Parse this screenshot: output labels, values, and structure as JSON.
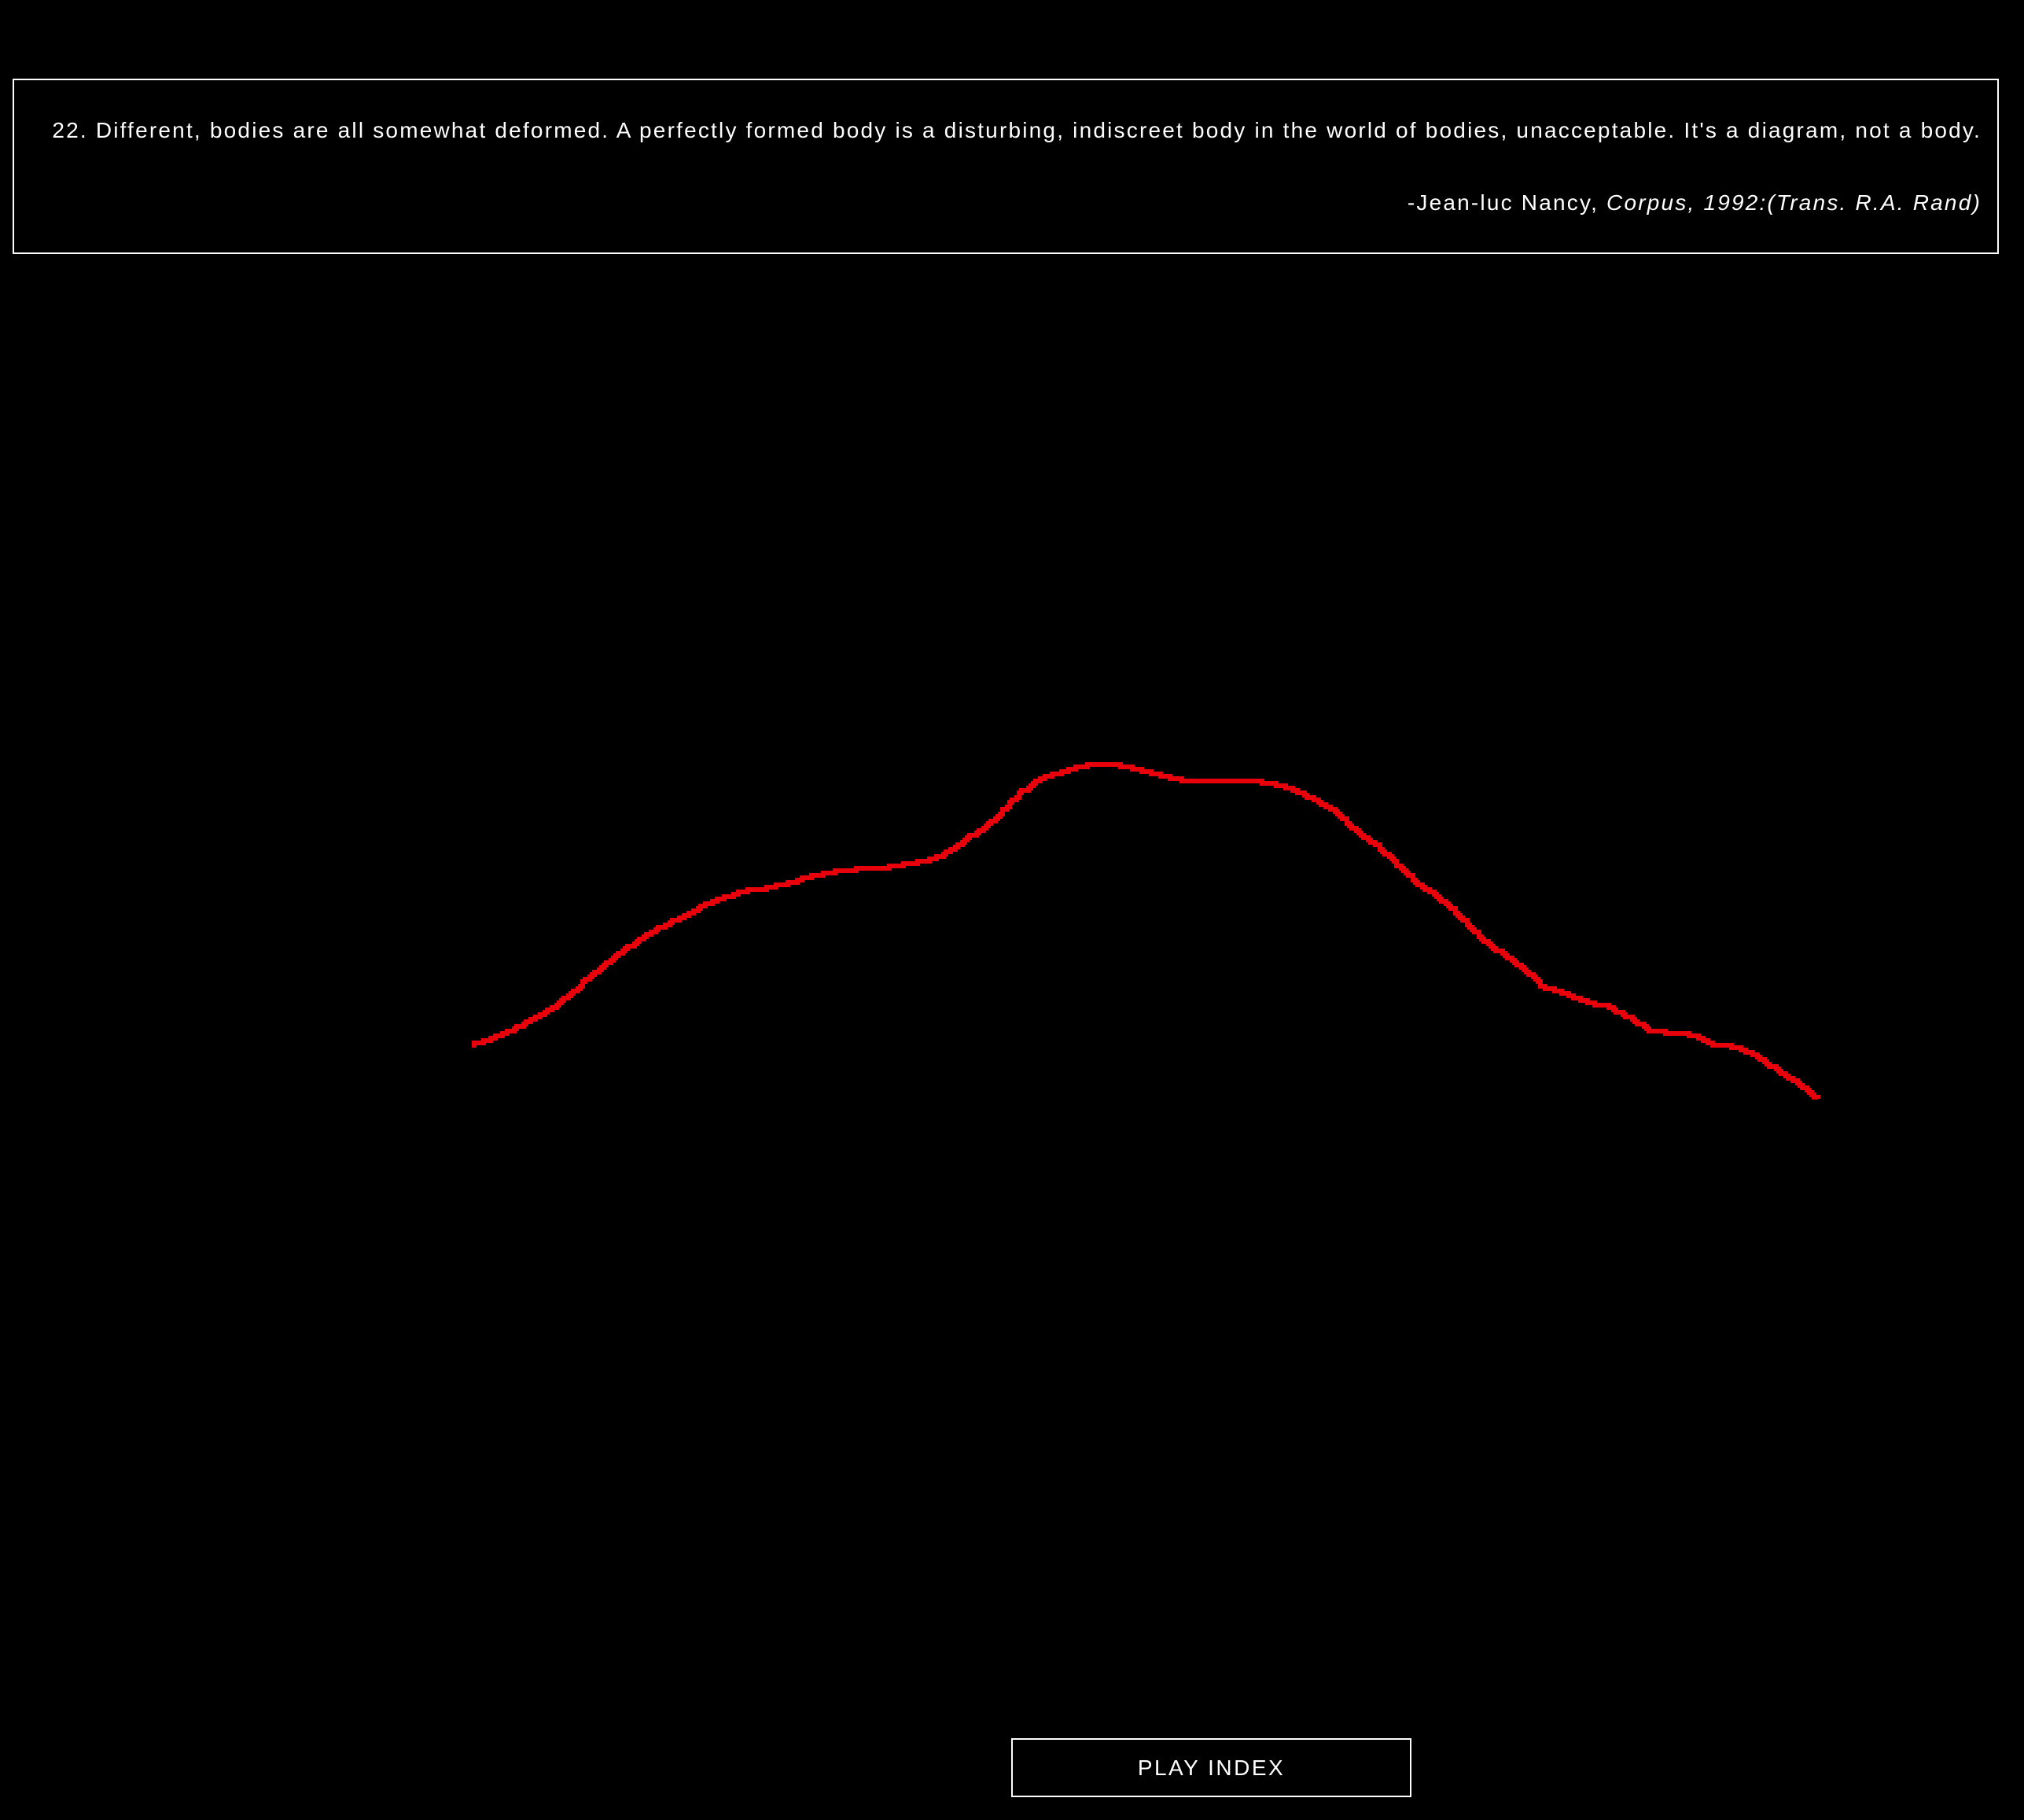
{
  "quote": {
    "text": "22. Different, bodies are all somewhat deformed. A perfectly formed body is a disturbing, indiscreet body in the world of bodies, unacceptable. It's a diagram, not a body.",
    "author_prefix": "-Jean-luc Nancy, ",
    "source": "Corpus, 1992:(Trans. R.A. Rand)"
  },
  "line": {
    "color": "#e8000b",
    "values": [
      0,
      8,
      20,
      34,
      50,
      72,
      96,
      116,
      134,
      150,
      162,
      177,
      187,
      195,
      199,
      205,
      213,
      219,
      222,
      224,
      226,
      231,
      236,
      251,
      270,
      290,
      319,
      338,
      346,
      354,
      356,
      354,
      347,
      340,
      334,
      334,
      334,
      334,
      333,
      324,
      312,
      296,
      272,
      253,
      228,
      203,
      186,
      161,
      134,
      115,
      96,
      72,
      65,
      54,
      48,
      34,
      18,
      14,
      12,
      0,
      -3,
      -14,
      -32,
      -49,
      -69
    ]
  },
  "controls": {
    "play_label": "PLAY INDEX"
  }
}
